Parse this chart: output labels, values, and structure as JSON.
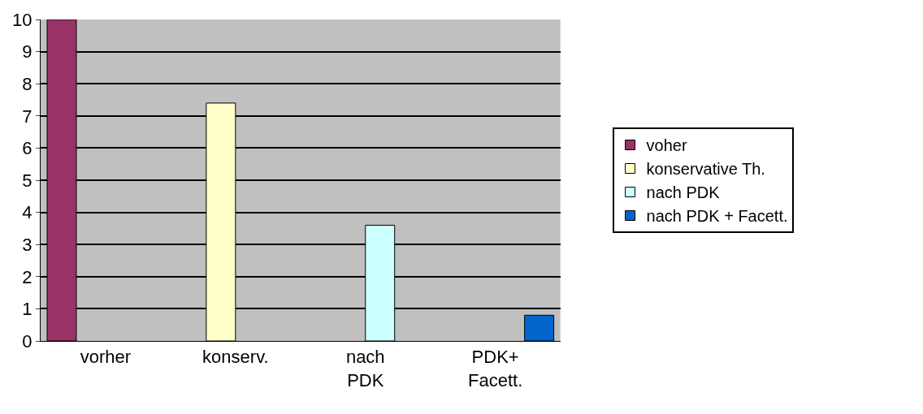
{
  "chart_data": {
    "type": "bar",
    "categories": [
      "vorher",
      "konserv.",
      "nach\nPDK",
      "PDK+\nFacett."
    ],
    "series": [
      {
        "name": "voher",
        "color": "#993366",
        "values": [
          10,
          null,
          null,
          null
        ]
      },
      {
        "name": "konservative Th.",
        "color": "#ffffcc",
        "values": [
          null,
          7.4,
          null,
          null
        ]
      },
      {
        "name": "nach PDK",
        "color": "#ccffff",
        "values": [
          null,
          null,
          3.6,
          null
        ]
      },
      {
        "name": "nach PDK + Facett.",
        "color": "#0066cc",
        "values": [
          null,
          null,
          null,
          0.8
        ]
      }
    ],
    "ylim": [
      0,
      10
    ],
    "yticks": [
      0,
      1,
      2,
      3,
      4,
      5,
      6,
      7,
      8,
      9,
      10
    ],
    "grid": "y",
    "legend": "right"
  }
}
